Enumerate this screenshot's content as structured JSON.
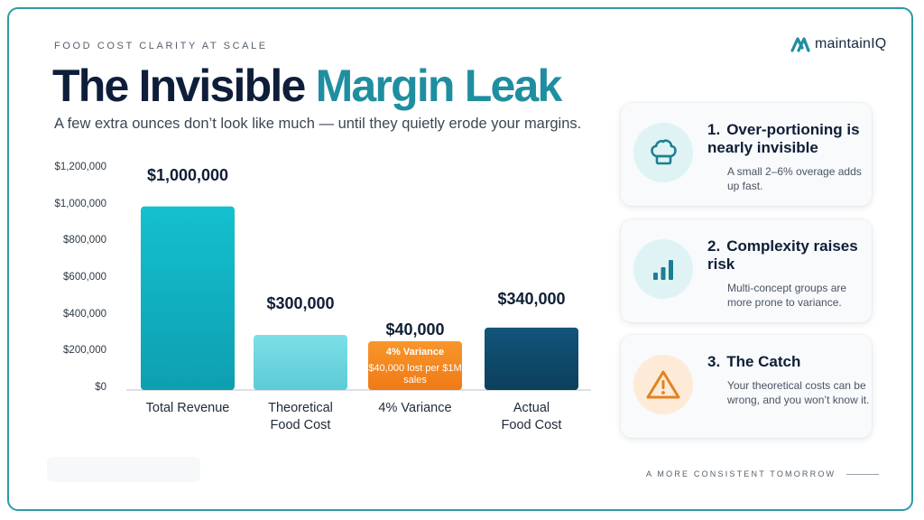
{
  "header": {
    "eyebrow": "FOOD COST CLARITY AT SCALE",
    "title_part1": "The Invisible",
    "title_part2": "Margin Leak",
    "subtitle": "A few extra ounces don’t look like much — until they quietly erode your margins."
  },
  "logo": {
    "text": "maintainIQ",
    "icon": "logo-mark-icon"
  },
  "chart_data": {
    "type": "bar",
    "title": "",
    "xlabel": "",
    "ylabel": "",
    "ylim": [
      0,
      1200000
    ],
    "yticks": [
      "$0",
      "$200,000",
      "$400,000",
      "$600,000",
      "$800,000",
      "$1,000,000",
      "$1,200,000"
    ],
    "ytick_values": [
      0,
      200000,
      400000,
      600000,
      800000,
      1000000,
      1200000
    ],
    "categories": [
      "Total Revenue",
      "Theoretical\nFood Cost",
      "4% Variance",
      "Actual\nFood Cost"
    ],
    "values": [
      1000000,
      300000,
      40000,
      340000
    ],
    "value_labels": [
      "$1,000,000",
      "$300,000",
      "$40,000",
      "$340,000"
    ],
    "bar_annotation": {
      "bar": "4% Variance",
      "title": "4% Variance",
      "text": "$40,000 lost per $1M sales"
    },
    "colors": [
      "#12b3c4",
      "#6fd6df",
      "#f58a22",
      "#0f4c6e"
    ],
    "grid": false
  },
  "cards": [
    {
      "number": "1.",
      "title": "Over-portioning is nearly invisible",
      "body": "A small 2–6% overage adds up fast.",
      "icon": "chef-hat-icon",
      "accent": "#1d7f91",
      "circle_bg": "#dff3f5"
    },
    {
      "number": "2.",
      "title": "Complexity raises risk",
      "body": "Multi-concept groups are more prone to variance.",
      "icon": "bar-chart-icon",
      "accent": "#1d7f91",
      "circle_bg": "#dff3f5"
    },
    {
      "number": "3.",
      "title": "The Catch",
      "body": "Your theoretical costs can be wrong, and you won’t know it.",
      "icon": "warning-icon",
      "accent": "#e58120",
      "circle_bg": "#fdebd8"
    }
  ],
  "footer": {
    "text": "A MORE CONSISTENT TOMORROW"
  }
}
